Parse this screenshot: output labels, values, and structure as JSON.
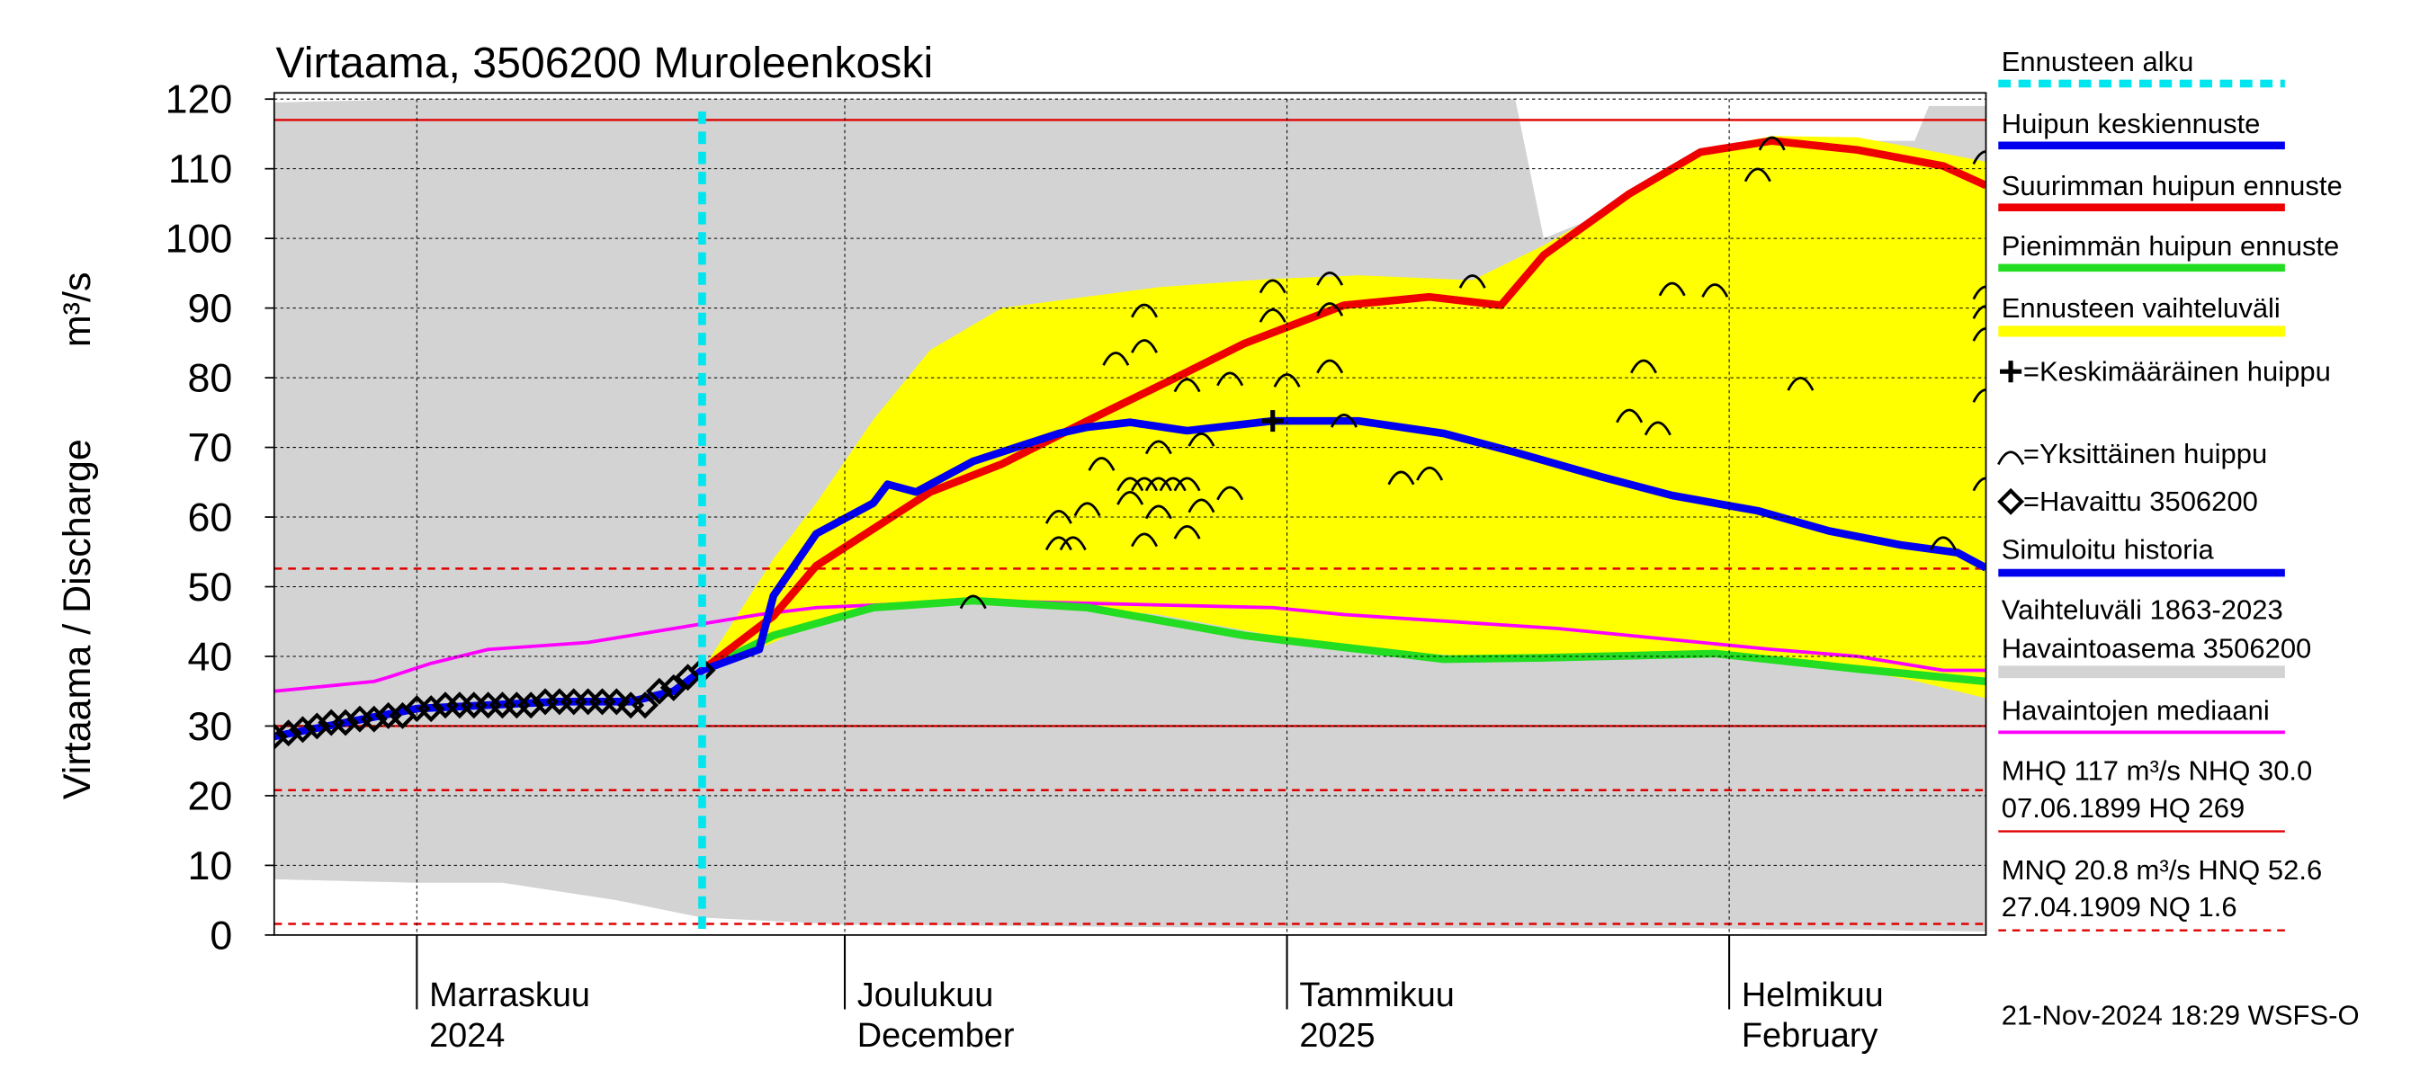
{
  "chart_data": {
    "type": "line",
    "title": "Virtaama, 3506200 Muroleenkoski",
    "ylabel": "Virtaama / Discharge",
    "yunit": "m³/s",
    "xlim": [
      "2024-10-22",
      "2025-02-19"
    ],
    "ylim": [
      0,
      120
    ],
    "yticks": [
      0,
      10,
      20,
      30,
      40,
      50,
      60,
      70,
      80,
      90,
      100,
      110,
      120
    ],
    "xticks": [
      {
        "value": "2024-11-01",
        "label": [
          "Marraskuu",
          "2024"
        ]
      },
      {
        "value": "2024-12-01",
        "label": [
          "Joulukuu",
          "December"
        ]
      },
      {
        "value": "2025-01-01",
        "label": [
          "Tammikuu",
          "2025"
        ]
      },
      {
        "value": "2025-02-01",
        "label": [
          "Helmikuu",
          "February"
        ]
      }
    ],
    "grid": true,
    "forecast_start": {
      "name": "Ennusteen alku",
      "x": "2024-11-21",
      "color": "#00e5ee"
    },
    "bands": [
      {
        "name": "Ennusteen vaihteluväli",
        "color": "#ffff00",
        "x": [
          "2024-11-21",
          "2024-11-26",
          "2024-11-29",
          "2024-12-03",
          "2024-12-07",
          "2024-12-12",
          "2024-12-23",
          "2024-12-31",
          "2025-01-06",
          "2025-01-14",
          "2025-01-19",
          "2025-01-25",
          "2025-01-30",
          "2025-02-04",
          "2025-02-10",
          "2025-02-14",
          "2025-02-19"
        ],
        "upper": [
          38,
          54,
          62,
          74,
          84,
          90,
          93,
          94.2,
          94.7,
          94,
          99,
          106,
          112.7,
          114.7,
          114.5,
          113,
          111
        ],
        "lower": [
          38,
          42,
          45,
          47,
          47.5,
          48,
          46,
          43,
          41,
          40,
          40,
          40.5,
          40.5,
          40,
          38,
          36.5,
          34
        ]
      },
      {
        "name": "Vaihteluväli 1863-2023",
        "name2": " Havaintoasema 3506200",
        "color": "#d3d3d3",
        "x": [
          "2024-10-22",
          "2024-11-01",
          "2024-11-07",
          "2024-11-15",
          "2024-11-21",
          "2024-12-01",
          "2024-12-31",
          "2025-01-17",
          "2025-01-19",
          "2025-01-25",
          "2025-01-30",
          "2025-02-04",
          "2025-02-10",
          "2025-02-14",
          "2025-02-15",
          "2025-02-19"
        ],
        "upper": [
          119.5,
          120,
          120,
          120,
          120,
          120,
          120,
          120,
          100,
          105,
          110,
          114,
          114,
          114,
          119,
          119
        ],
        "lower": [
          8,
          7.5,
          7.5,
          5,
          2.5,
          1.5,
          1,
          1,
          1,
          1,
          1,
          0.8,
          0.8,
          0.6,
          0.6,
          0.5
        ]
      }
    ],
    "series": [
      {
        "name": "Huipun keskiennuste",
        "color": "#0000ee",
        "marker": "line",
        "x": [
          "2024-11-21",
          "2024-11-25",
          "2024-11-26",
          "2024-11-29",
          "2024-12-03",
          "2024-12-04",
          "2024-12-06",
          "2024-12-10",
          "2024-12-16",
          "2024-12-18",
          "2024-12-21",
          "2024-12-25",
          "2024-12-31",
          "2025-01-06",
          "2025-01-12",
          "2025-01-17",
          "2025-01-23",
          "2025-01-28",
          "2025-02-03",
          "2025-02-08",
          "2025-02-13",
          "2025-02-17",
          "2025-02-19"
        ],
        "values": [
          38,
          41,
          48.7,
          57.6,
          62,
          64.7,
          63.6,
          68,
          72,
          72.9,
          73.6,
          72.4,
          73.8,
          73.8,
          72,
          69.3,
          65.8,
          63.1,
          60.9,
          58,
          56,
          54.9,
          52.7
        ]
      },
      {
        "name": "Suurimman huipun ennuste",
        "color": "#ee0000",
        "marker": "line",
        "x": [
          "2024-11-21",
          "2024-11-26",
          "2024-11-29",
          "2024-12-07",
          "2024-12-12",
          "2024-12-18",
          "2024-12-24",
          "2024-12-29",
          "2025-01-05",
          "2025-01-11",
          "2025-01-16",
          "2025-01-19",
          "2025-01-25",
          "2025-01-30",
          "2025-02-04",
          "2025-02-10",
          "2025-02-16",
          "2025-02-19"
        ],
        "values": [
          38,
          45.8,
          53,
          63.6,
          67.6,
          73.8,
          79.8,
          84.9,
          90.4,
          91.6,
          90.4,
          97.6,
          106.4,
          112.4,
          114,
          112.7,
          110.4,
          107.6
        ]
      },
      {
        "name": "Pienimmän huipun ennuste",
        "color": "#22dd22",
        "marker": "line",
        "x": [
          "2024-11-21",
          "2024-11-26",
          "2024-12-03",
          "2024-12-10",
          "2024-12-18",
          "2024-12-29",
          "2025-01-05",
          "2025-01-12",
          "2025-01-19",
          "2025-01-31",
          "2025-02-10",
          "2025-02-19"
        ],
        "values": [
          38,
          43,
          47,
          48,
          47,
          43,
          41.3,
          39.6,
          39.8,
          40.4,
          38.2,
          36.4
        ]
      },
      {
        "name": "=Keskimääräinen huippu",
        "color": "#000000",
        "marker": "plus",
        "x": [
          "2024-12-31"
        ],
        "values": [
          73.8
        ]
      },
      {
        "name": "=Yksittäinen huippu",
        "color": "#000000",
        "marker": "arc",
        "x": [
          "2024-12-16",
          "2024-12-17",
          "2024-12-16",
          "2024-12-18",
          "2024-12-19",
          "2024-12-20",
          "2024-12-22",
          "2024-12-22",
          "2024-12-21",
          "2024-12-22",
          "2024-12-23",
          "2024-12-24",
          "2024-12-25",
          "2024-12-21",
          "2024-12-23",
          "2024-12-26",
          "2024-12-22",
          "2024-12-25",
          "2024-12-28",
          "2024-12-25",
          "2024-12-28",
          "2024-12-23",
          "2024-12-26",
          "2024-12-31",
          "2024-12-31",
          "2025-01-01",
          "2025-01-04",
          "2025-01-04",
          "2025-01-04",
          "2025-01-05",
          "2025-01-09",
          "2025-01-11",
          "2025-01-14",
          "2025-01-26",
          "2025-01-25",
          "2025-01-27",
          "2025-01-28",
          "2025-01-31",
          "2025-02-03",
          "2025-02-04",
          "2025-02-06",
          "2025-02-16",
          "2025-02-19",
          "2025-02-19",
          "2025-02-19",
          "2025-02-19",
          "2025-02-19",
          "2025-02-19",
          "2024-12-10"
        ],
        "values": [
          60.2,
          56.4,
          56.4,
          61.3,
          67.8,
          82.9,
          84.7,
          89.8,
          64.9,
          64.9,
          64.9,
          64.9,
          64.9,
          62.9,
          60.9,
          61.8,
          56.9,
          58,
          63.6,
          79.1,
          80,
          70.2,
          71.3,
          93.3,
          89.1,
          79.8,
          94.4,
          90,
          81.8,
          74,
          65.8,
          66.4,
          94,
          81.8,
          74.7,
          72.9,
          92.9,
          92.7,
          109.3,
          113.8,
          79.3,
          56.4,
          111.8,
          92.4,
          89.6,
          86.4,
          77.6,
          64.9,
          48
        ]
      },
      {
        "name": "=Havaittu 3506200",
        "color": "#000000",
        "marker": "diamond",
        "x": [
          "2024-10-22",
          "2024-10-23",
          "2024-10-24",
          "2024-10-25",
          "2024-10-26",
          "2024-10-27",
          "2024-10-28",
          "2024-10-29",
          "2024-10-30",
          "2024-10-31",
          "2024-11-01",
          "2024-11-02",
          "2024-11-03",
          "2024-11-04",
          "2024-11-05",
          "2024-11-06",
          "2024-11-07",
          "2024-11-08",
          "2024-11-09",
          "2024-11-10",
          "2024-11-11",
          "2024-11-12",
          "2024-11-13",
          "2024-11-14",
          "2024-11-15",
          "2024-11-16",
          "2024-11-17",
          "2024-11-18",
          "2024-11-19",
          "2024-11-20",
          "2024-11-21"
        ],
        "values": [
          28.5,
          29,
          29.5,
          30,
          30.5,
          30.5,
          31,
          31,
          31.5,
          31.5,
          32.5,
          32.5,
          33,
          33,
          33,
          33,
          33,
          33,
          33,
          33.5,
          33.5,
          33.5,
          33.5,
          33.5,
          33.5,
          33,
          33,
          35,
          35.5,
          37,
          38
        ]
      },
      {
        "name": "Simuloitu historia",
        "color": "#0000ee",
        "marker": "line",
        "x": [
          "2024-10-22",
          "2024-10-27",
          "2024-11-01",
          "2024-11-06",
          "2024-11-11",
          "2024-11-16",
          "2024-11-19",
          "2024-11-21"
        ],
        "values": [
          28.5,
          30.5,
          32.5,
          33,
          33.5,
          33.5,
          35,
          38
        ]
      },
      {
        "name": "Havaintojen mediaani",
        "color": "#ff00ff",
        "marker": "line",
        "x": [
          "2024-10-22",
          "2024-10-29",
          "2024-10-30",
          "2024-11-02",
          "2024-11-06",
          "2024-11-13",
          "2024-11-16",
          "2024-11-19",
          "2024-11-22",
          "2024-11-25",
          "2024-11-29",
          "2024-12-10",
          "2024-12-31",
          "2025-01-05",
          "2025-01-20",
          "2025-01-25",
          "2025-02-04",
          "2025-02-10",
          "2025-02-16",
          "2025-02-19"
        ],
        "values": [
          35,
          36.4,
          37,
          39,
          41,
          42,
          43,
          44,
          45,
          46,
          47,
          48,
          47,
          46,
          44,
          43,
          41,
          40,
          38,
          38
        ]
      }
    ],
    "reference_color": "#e00000",
    "reference_lines": [
      {
        "value": 117,
        "style": "solid"
      },
      {
        "value": 30,
        "style": "solid"
      },
      {
        "value": 52.6,
        "style": "dashed"
      },
      {
        "value": 20.8,
        "style": "dashed"
      },
      {
        "value": 1.6,
        "style": "dashed"
      }
    ],
    "reference_notes": [
      {
        "lines": [
          "MHQ  117 m³/s NHQ 30.0",
          "07.06.1899 HQ  269"
        ],
        "style": "solid"
      },
      {
        "lines": [
          "MNQ 20.8 m³/s HNQ 52.6",
          "27.04.1909 NQ  1.6"
        ],
        "style": "dashed"
      }
    ],
    "timestamp": "21-Nov-2024 18:29 WSFS-O"
  }
}
